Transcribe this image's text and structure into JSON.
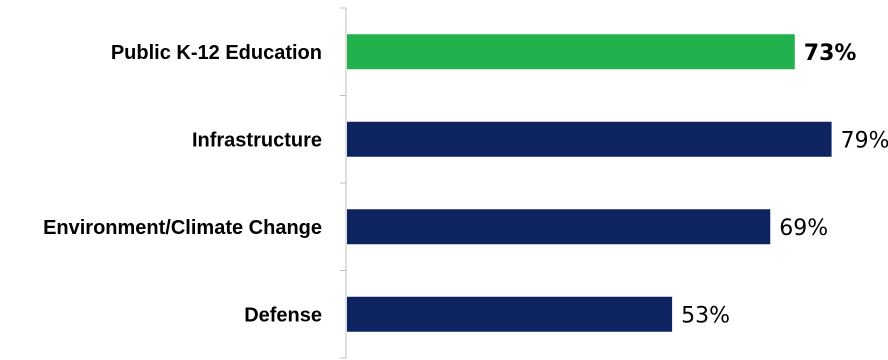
{
  "chart_data": {
    "type": "bar",
    "orientation": "horizontal",
    "categories": [
      "Public K-12 Education",
      "Infrastructure",
      "Environment/Climate Change",
      "Defense"
    ],
    "values": [
      73,
      79,
      69,
      53
    ],
    "value_labels": [
      "73%",
      "79%",
      "69%",
      "53%"
    ],
    "highlighted_category": "Public K-12 Education",
    "colors": {
      "default": "#0d2461",
      "highlight": "#22b14c"
    },
    "xlim": [
      0,
      100
    ],
    "grid": false,
    "legend": "none"
  }
}
